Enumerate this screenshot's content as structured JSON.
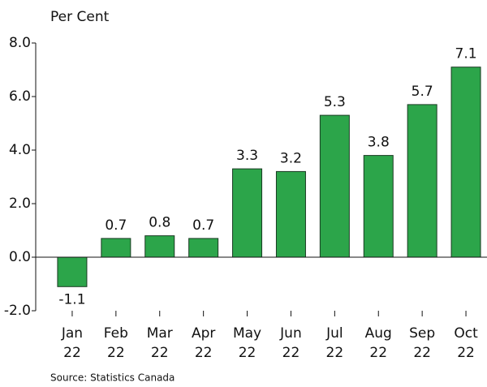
{
  "chart_data": {
    "type": "bar",
    "y_axis_label": "Per Cent",
    "source": "Source: Statistics Canada",
    "categories": [
      [
        "Jan",
        "22"
      ],
      [
        "Feb",
        "22"
      ],
      [
        "Mar",
        "22"
      ],
      [
        "Apr",
        "22"
      ],
      [
        "May",
        "22"
      ],
      [
        "Jun",
        "22"
      ],
      [
        "Jul",
        "22"
      ],
      [
        "Aug",
        "22"
      ],
      [
        "Sep",
        "22"
      ],
      [
        "Oct",
        "22"
      ]
    ],
    "values": [
      -1.1,
      0.7,
      0.8,
      0.7,
      3.3,
      3.2,
      5.3,
      3.8,
      5.7,
      7.1
    ],
    "color": "#2ca54a",
    "ylim": [
      -2,
      8
    ],
    "yticks": [
      {
        "value": -2,
        "label": "-2.0"
      },
      {
        "value": 0,
        "label": "0.0"
      },
      {
        "value": 2,
        "label": "2.0"
      },
      {
        "value": 4,
        "label": "4.0"
      },
      {
        "value": 6,
        "label": "6.0"
      },
      {
        "value": 8,
        "label": "8.0"
      }
    ],
    "grid": false
  }
}
